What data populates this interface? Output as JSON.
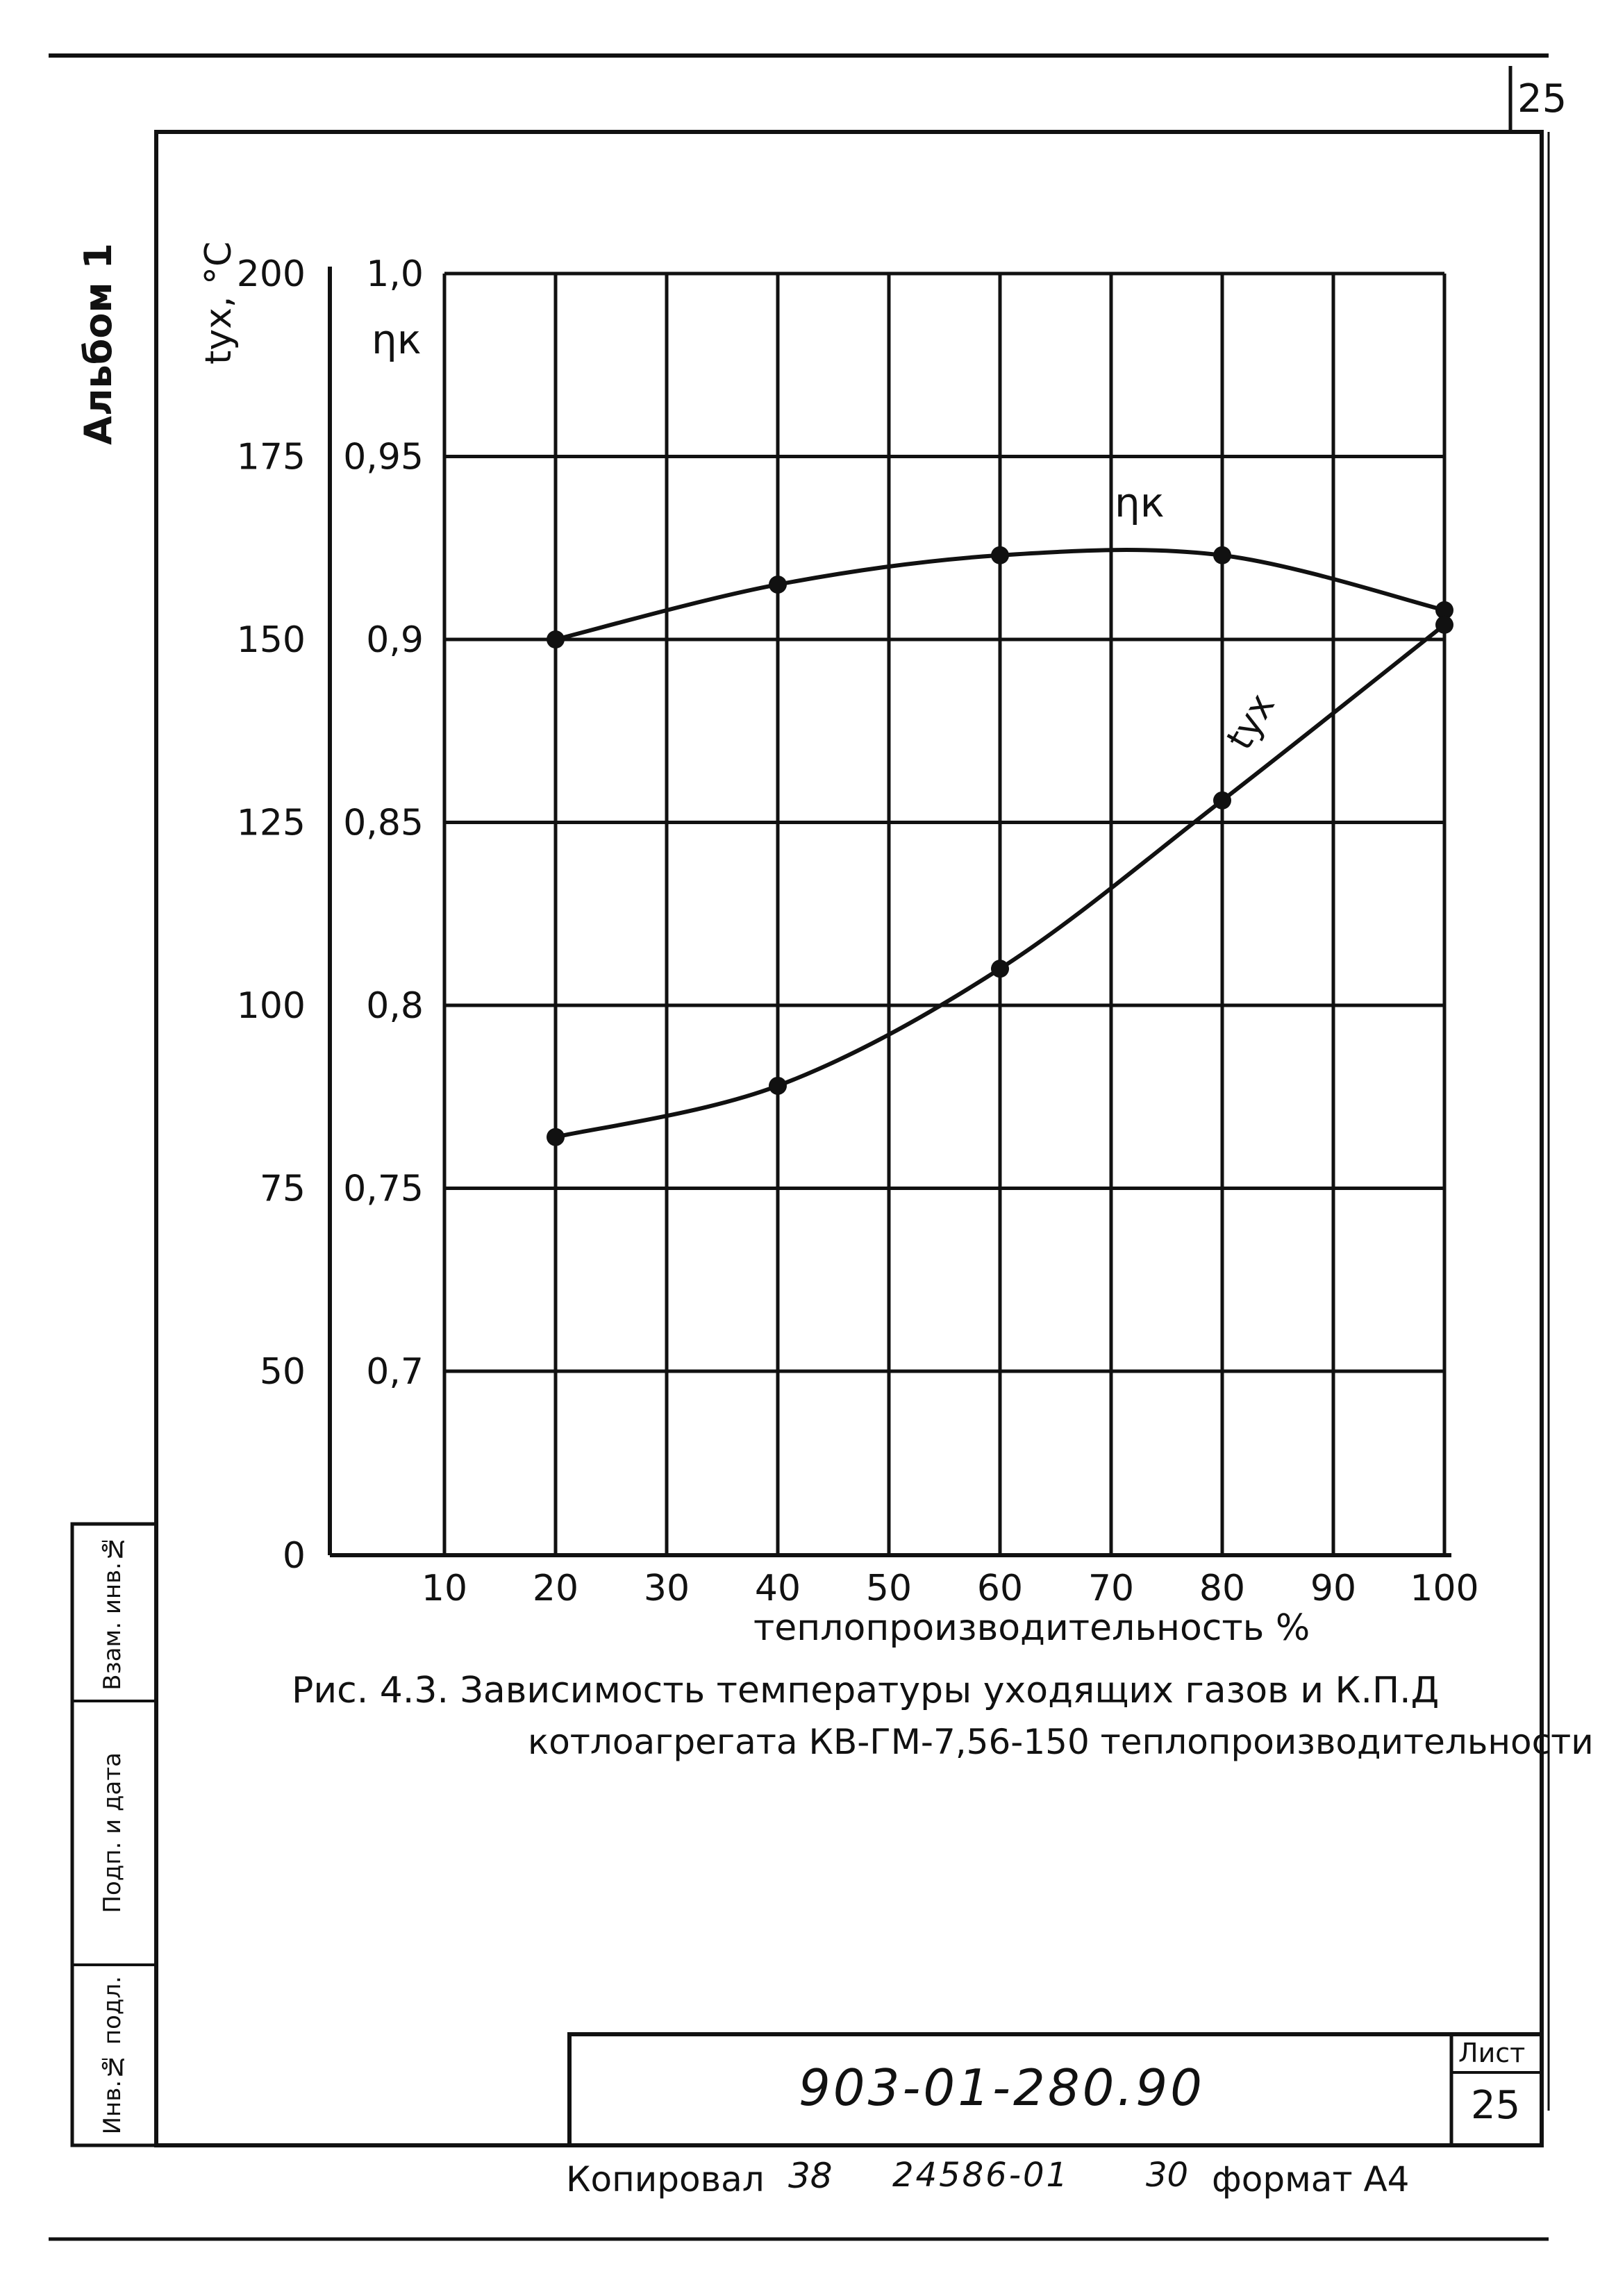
{
  "sheet": {
    "corner_number": "25",
    "album_label": "Альбом 1",
    "side_stamp": [
      "Инв.№ подл.",
      "Подп. и дата",
      "Взам. инв.№"
    ],
    "doc_number": "903-01-280.90",
    "sheet_label": "Лист",
    "sheet_number": "25",
    "footer": {
      "copied": "Копировал",
      "copied_sign": "38",
      "order": "24586-01",
      "number": "30",
      "format": "формат А4"
    }
  },
  "caption": {
    "line1": "Рис. 4.3. Зависимость температуры уходящих газов и К.П.Д",
    "line2": "котлоагрегата КВ-ГМ-7,56-150 теплопроизводительности"
  },
  "chart_data": {
    "type": "line",
    "xlabel": "теплопроизводительность %",
    "x_ticks": [
      10,
      20,
      30,
      40,
      50,
      60,
      70,
      80,
      90,
      100
    ],
    "xlim": [
      10,
      100
    ],
    "y_left_label": "tух, °С",
    "y_left_ticks": [
      0,
      50,
      75,
      100,
      125,
      150,
      175,
      200
    ],
    "y_left_tick_labels": [
      "0",
      "50",
      "75",
      "100",
      "125",
      "150",
      "175",
      "200"
    ],
    "y_right_label": "ηк",
    "y_right_ticks": [
      0.7,
      0.75,
      0.8,
      0.85,
      0.9,
      0.95,
      1.0
    ],
    "y_right_tick_labels": [
      "0,7",
      "0,75",
      "0,8",
      "0,85",
      "0,9",
      "0,95",
      "1,0"
    ],
    "grid": true,
    "series": [
      {
        "name": "ηк",
        "axis": "eta",
        "x": [
          20,
          40,
          60,
          80,
          100
        ],
        "y": [
          0.9,
          0.915,
          0.923,
          0.923,
          0.908
        ]
      },
      {
        "name": "tух",
        "axis": "temp",
        "x": [
          20,
          40,
          60,
          80,
          100
        ],
        "y": [
          82,
          89,
          105,
          128,
          152
        ]
      }
    ]
  }
}
